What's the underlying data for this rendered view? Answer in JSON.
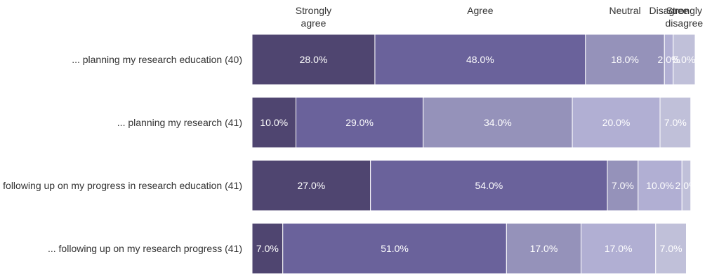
{
  "chart_data": {
    "type": "bar",
    "orientation": "horizontal",
    "stacked": true,
    "categories": [
      "... planning my research education (40)",
      "... planning my research (41)",
      "following up on my progress in research education (41)",
      "... following up on my research progress (41)"
    ],
    "series": [
      {
        "name": "Strongly agree",
        "color": "#4f4570",
        "values": [
          28.0,
          10.0,
          27.0,
          7.0
        ]
      },
      {
        "name": "Agree",
        "color": "#6a629b",
        "values": [
          48.0,
          29.0,
          54.0,
          51.0
        ]
      },
      {
        "name": "Neutral",
        "color": "#9592ba",
        "values": [
          18.0,
          34.0,
          7.0,
          17.0
        ]
      },
      {
        "name": "Disagree",
        "color": "#b1afd3",
        "values": [
          2.0,
          20.0,
          10.0,
          17.0
        ]
      },
      {
        "name": "Strongly disagree",
        "color": "#c0c0d9",
        "values": [
          5.0,
          7.0,
          2.0,
          7.0
        ]
      }
    ],
    "value_labels": [
      [
        "28.0%",
        "48.0%",
        "18.0%",
        "2.0%",
        "5.0%"
      ],
      [
        "10.0%",
        "29.0%",
        "34.0%",
        "20.0%",
        "7.0%"
      ],
      [
        "27.0%",
        "54.0%",
        "7.0%",
        "10.0%",
        "2.0%"
      ],
      [
        "7.0%",
        "51.0%",
        "17.0%",
        "17.0%",
        "7.0%"
      ]
    ],
    "header_labels": [
      [
        "Strongly",
        "agree"
      ],
      [
        "Agree"
      ],
      [
        "Neutral"
      ],
      [
        "Disagree"
      ],
      [
        "Strongly",
        "disagree"
      ]
    ],
    "xlim": [
      0,
      101
    ],
    "legend": "top"
  }
}
